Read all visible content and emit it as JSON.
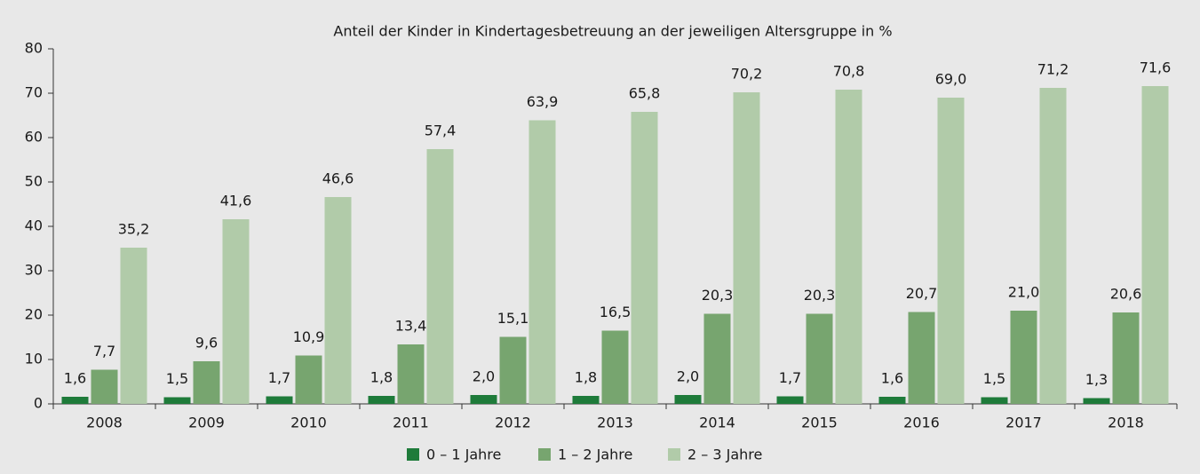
{
  "chart_data": {
    "type": "bar",
    "title": "Anteil der Kinder in Kindertagesbetreuung an der jeweiligen Altersgruppe in %",
    "categories": [
      "2008",
      "2009",
      "2010",
      "2011",
      "2012",
      "2013",
      "2014",
      "2015",
      "2016",
      "2017",
      "2018"
    ],
    "series": [
      {
        "name": "0 – 1 Jahre",
        "color": "#1e7b3a",
        "values": [
          1.6,
          1.5,
          1.7,
          1.8,
          2.0,
          1.8,
          2.0,
          1.7,
          1.6,
          1.5,
          1.3
        ],
        "value_labels": [
          "1,6",
          "1,5",
          "1,7",
          "1,8",
          "2,0",
          "1,8",
          "2,0",
          "1,7",
          "1,6",
          "1,5",
          "1,3"
        ]
      },
      {
        "name": "1 – 2 Jahre",
        "color": "#77a56f",
        "values": [
          7.7,
          9.6,
          10.9,
          13.4,
          15.1,
          16.5,
          20.3,
          20.3,
          20.7,
          21.0,
          20.6
        ],
        "value_labels": [
          "7,7",
          "9,6",
          "10,9",
          "13,4",
          "15,1",
          "16,5",
          "20,3",
          "20,3",
          "20,7",
          "21,0",
          "20,6"
        ]
      },
      {
        "name": "2 – 3 Jahre",
        "color": "#b1cba9",
        "values": [
          35.2,
          41.6,
          46.6,
          57.4,
          63.9,
          65.8,
          70.2,
          70.8,
          69.0,
          71.2,
          71.6
        ],
        "value_labels": [
          "35,2",
          "41,6",
          "46,6",
          "57,4",
          "63,9",
          "65,8",
          "70,2",
          "70,8",
          "69,0",
          "71,2",
          "71,6"
        ]
      }
    ],
    "ylim": [
      0,
      80
    ],
    "yticks": [
      0,
      10,
      20,
      30,
      40,
      50,
      60,
      70,
      80
    ],
    "grid": false,
    "legend": "bottom"
  }
}
